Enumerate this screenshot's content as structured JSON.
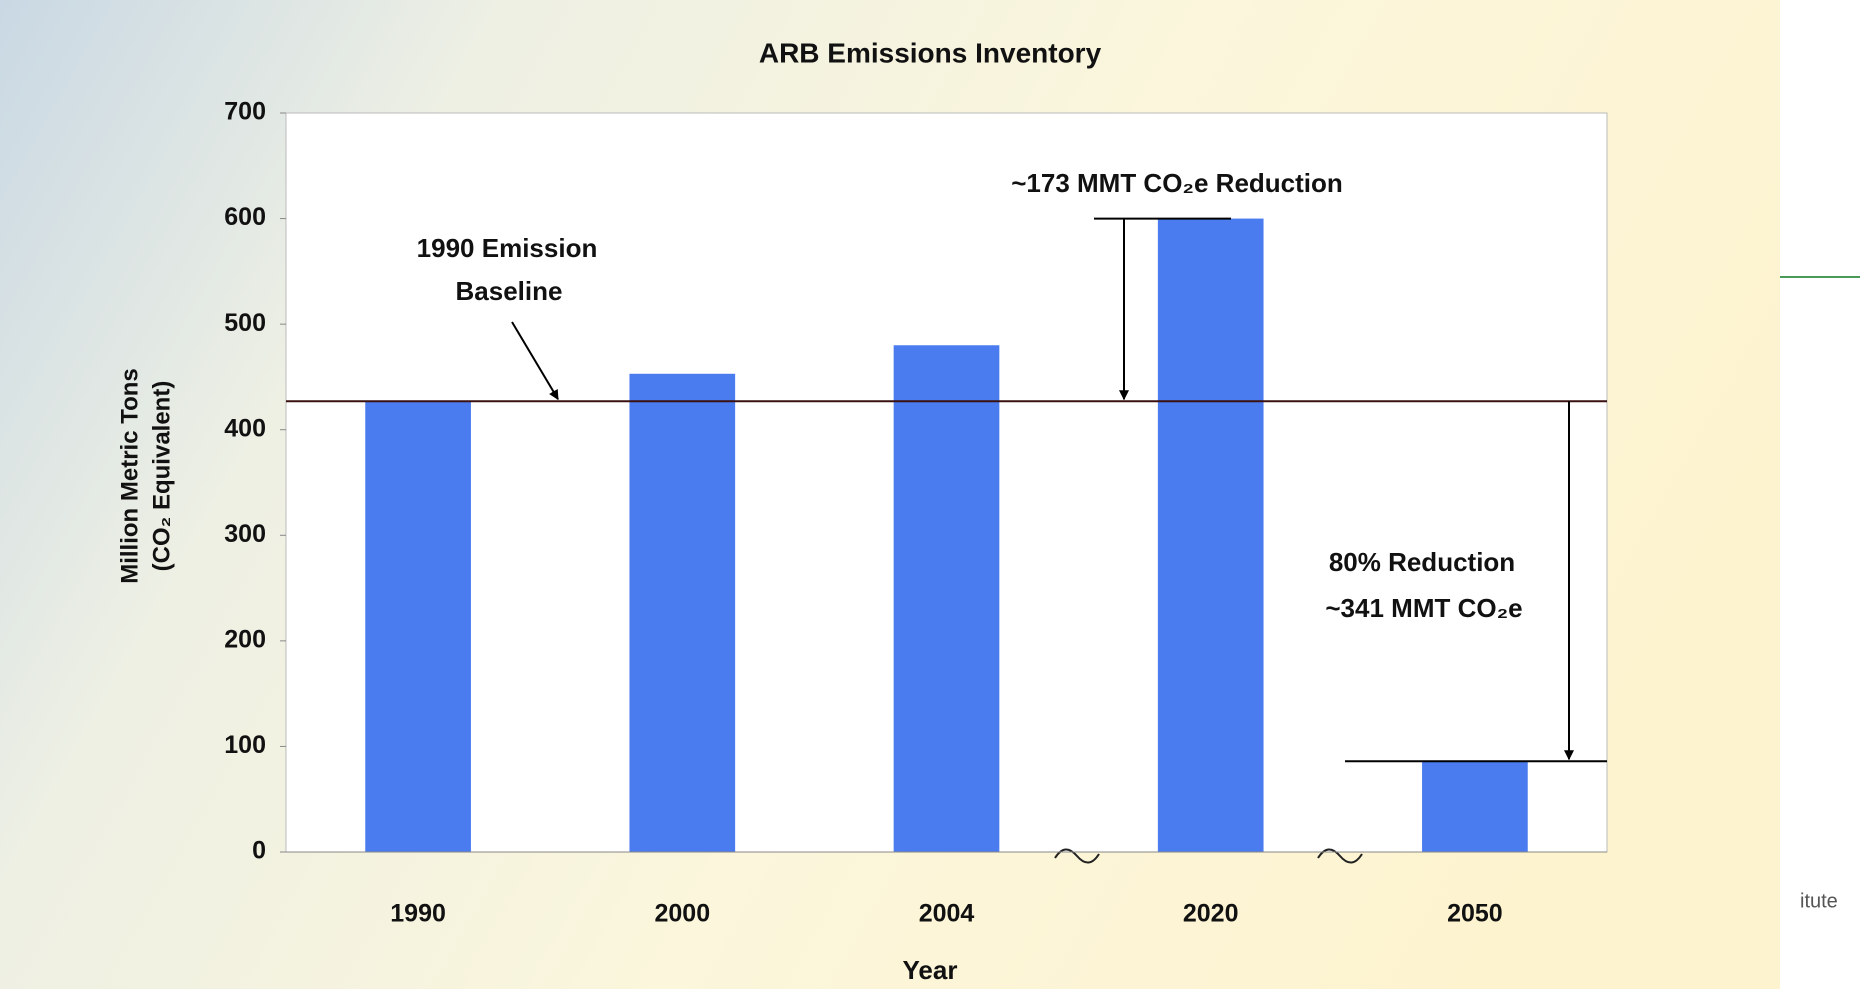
{
  "chart_data": {
    "type": "bar",
    "title": "ARB Emissions Inventory",
    "x_label": "Year",
    "y_label": [
      "Million Metric Tons",
      "(CO₂ Equivalent)"
    ],
    "categories": [
      "1990",
      "2000",
      "2004",
      "2020",
      "2050"
    ],
    "values": [
      427,
      453,
      480,
      600,
      86
    ],
    "color": "#4a7cf0",
    "ylim": [
      0,
      700
    ],
    "yticks": [
      0,
      100,
      200,
      300,
      400,
      500,
      600,
      700
    ],
    "baseline": 427,
    "annotations": {
      "baseline_label": [
        "1990 Emission",
        "Baseline"
      ],
      "reduction_2020": "~173 MMT CO₂e Reduction",
      "reduction_2050": [
        "80% Reduction",
        "~341 MMT CO₂e"
      ]
    }
  },
  "background_text": "itute"
}
